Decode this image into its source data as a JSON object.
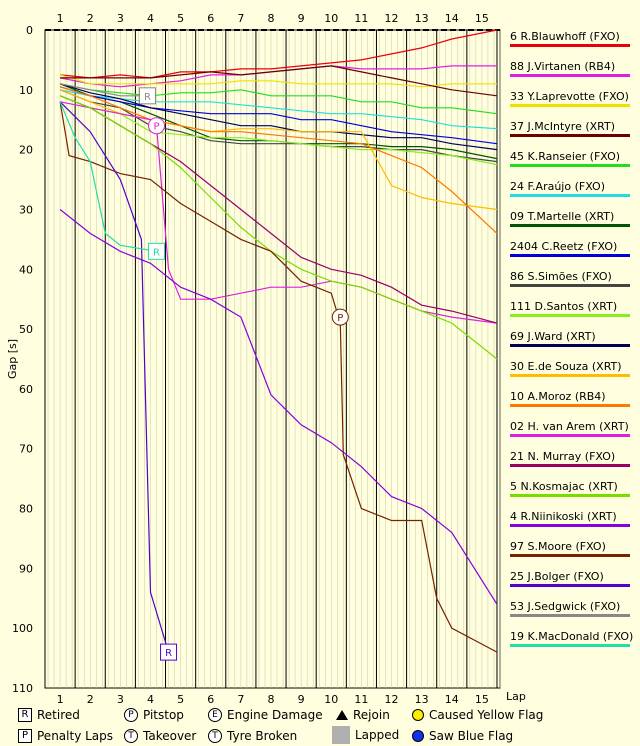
{
  "chart_data": {
    "type": "line",
    "ylabel": "Gap [s]",
    "xlabel": "Lap",
    "xticks": [
      "1",
      "2",
      "3",
      "4",
      "5",
      "6",
      "7",
      "8",
      "9",
      "10",
      "11",
      "12",
      "13",
      "14",
      "15"
    ],
    "yticks": [
      "0",
      "10",
      "20",
      "30",
      "40",
      "50",
      "60",
      "70",
      "80",
      "90",
      "100",
      "110"
    ],
    "ylim": [
      0,
      110
    ],
    "xlim": [
      0.5,
      15.6
    ],
    "series": [
      {
        "name": "6 R.Blauwhoff (FXO)",
        "color": "#e8000b",
        "x": [
          1,
          2,
          3,
          4,
          5,
          6,
          7,
          8,
          9,
          10,
          11,
          12,
          13,
          14,
          15.5
        ],
        "y": [
          7.5,
          8,
          7.5,
          8,
          7,
          7,
          6.5,
          6.5,
          6,
          5.5,
          5,
          4,
          3,
          1.5,
          0
        ]
      },
      {
        "name": "88 J.Virtanen (RB4)",
        "color": "#e020e0",
        "x": [
          1,
          2,
          3,
          4,
          5,
          6,
          7,
          8,
          9,
          10,
          11,
          12,
          13,
          14,
          15.5
        ],
        "y": [
          8,
          9,
          9.5,
          9,
          8.5,
          7.5,
          7.5,
          7,
          6.5,
          6,
          6.5,
          6.5,
          6.5,
          6,
          6
        ]
      },
      {
        "name": "33 Y.Laprevotte (FXO)",
        "color": "#f0e000",
        "x": [
          1,
          2,
          3,
          4,
          5,
          6,
          7,
          8,
          9,
          10,
          11,
          12,
          13,
          14,
          15.5
        ],
        "y": [
          7.5,
          9,
          9,
          9,
          9,
          9,
          8.5,
          8.5,
          9,
          9,
          9,
          9,
          9.5,
          9,
          9
        ]
      },
      {
        "name": "37 J.McIntyre (XRT)",
        "color": "#6b0000",
        "x": [
          1,
          2,
          3,
          4,
          5,
          6,
          7,
          8,
          9,
          10,
          11,
          12,
          13,
          14,
          15.5
        ],
        "y": [
          8,
          8,
          8,
          8,
          7.5,
          7,
          7.5,
          7,
          6.5,
          6,
          7,
          8,
          9,
          10,
          11
        ]
      },
      {
        "name": "45 K.Ranseier (FXO)",
        "color": "#22dd22",
        "x": [
          1,
          2,
          3,
          4,
          5,
          6,
          7,
          8,
          9,
          10,
          11,
          12,
          13,
          14,
          15.5
        ],
        "y": [
          9,
          10,
          10.5,
          11,
          10.5,
          10.5,
          10,
          11,
          11,
          11,
          12,
          12,
          13,
          13,
          14
        ]
      },
      {
        "name": "24 F.Araújo (FXO)",
        "color": "#22dddd",
        "x": [
          1,
          2,
          3,
          4,
          5,
          6,
          7,
          8,
          9,
          10,
          11,
          12,
          13,
          14,
          15.5
        ],
        "y": [
          10,
          11,
          11.5,
          12,
          12,
          12,
          12.5,
          13,
          13.5,
          14,
          14,
          14.5,
          15,
          16,
          16.5
        ]
      },
      {
        "name": "09 T.Martelle (XRT)",
        "color": "#005500",
        "x": [
          1,
          2,
          3,
          4,
          5,
          6,
          7,
          8,
          9,
          10,
          11,
          12,
          13,
          14,
          15.5
        ],
        "y": [
          9,
          11,
          12,
          14,
          16,
          18,
          18.5,
          18.5,
          19,
          19,
          19,
          19.5,
          19.5,
          20,
          21.5
        ]
      },
      {
        "name": "2404 C.Reetz (FXO)",
        "color": "#0000dd",
        "x": [
          1,
          2,
          3,
          4,
          5,
          6,
          7,
          8,
          9,
          10,
          11,
          12,
          13,
          14,
          15.5
        ],
        "y": [
          9.5,
          11,
          12,
          13,
          13.5,
          14,
          14,
          14,
          15,
          15,
          16,
          17,
          17.5,
          18,
          19
        ]
      },
      {
        "name": "86 S.Simões (FXO)",
        "color": "#444444",
        "x": [
          1,
          2,
          3,
          4,
          5,
          6,
          7,
          8,
          9,
          10,
          11,
          12,
          13,
          14,
          15.5
        ],
        "y": [
          10,
          12,
          13,
          16,
          17,
          18.5,
          19,
          19,
          19,
          19.5,
          19.5,
          20,
          20,
          21,
          22
        ]
      },
      {
        "name": "111 D.Santos (XRT)",
        "color": "#88ee22",
        "x": [
          1,
          2,
          3,
          4,
          5,
          6,
          7,
          8,
          9,
          10,
          11,
          12,
          13,
          14,
          15.5
        ],
        "y": [
          11,
          13,
          14,
          17,
          17.5,
          18,
          18,
          18.5,
          19,
          19.5,
          20,
          20,
          20.5,
          21,
          22.5
        ]
      },
      {
        "name": "69 J.Ward (XRT)",
        "color": "#00005a",
        "x": [
          1,
          2,
          3,
          4,
          5,
          6,
          7,
          8,
          9,
          10,
          11,
          12,
          13,
          14,
          15.5
        ],
        "y": [
          9,
          10.5,
          11.5,
          13,
          14,
          15,
          16,
          16,
          17,
          17,
          17.5,
          18,
          18,
          19,
          20
        ]
      },
      {
        "name": "30 E.de Souza (XRT)",
        "color": "#ffbb00",
        "x": [
          1,
          2,
          3,
          4,
          5,
          6,
          7,
          8,
          9,
          10,
          11,
          12,
          13,
          14,
          15.5
        ],
        "y": [
          10,
          12,
          14,
          15,
          16,
          17,
          16.5,
          16.5,
          17,
          17,
          17,
          26,
          28,
          29,
          30
        ]
      },
      {
        "name": "10 A.Moroz (RB4)",
        "color": "#ff7700",
        "x": [
          1,
          2,
          3,
          4,
          5,
          6,
          7,
          8,
          9,
          10,
          11,
          12,
          13,
          14,
          15.5
        ],
        "y": [
          9.5,
          11,
          13,
          15,
          16,
          17,
          17,
          17.5,
          18,
          18.5,
          19,
          21,
          23,
          27,
          34
        ]
      },
      {
        "name": "02 H. van Arem (XRT)",
        "color": "#dd22dd",
        "x": [
          1,
          2,
          3,
          4,
          4.2,
          4.6,
          5,
          6,
          7,
          8,
          9,
          10,
          11,
          12,
          13,
          14,
          15.5
        ],
        "y": [
          12,
          13,
          14,
          15,
          16,
          40,
          45,
          45,
          44,
          43,
          43,
          42,
          43,
          45,
          47,
          48,
          49
        ]
      },
      {
        "name": "21 N. Murray (FXO)",
        "color": "#990066",
        "x": [
          1,
          2,
          3,
          4,
          5,
          6,
          7,
          8,
          9,
          10,
          11,
          12,
          13,
          14,
          15.5
        ],
        "y": [
          11,
          13,
          16,
          19,
          22,
          26,
          30,
          34,
          38,
          40,
          41,
          43,
          46,
          47,
          49
        ]
      },
      {
        "name": "5 N.Kosmajac (XRT)",
        "color": "#77dd00",
        "x": [
          1,
          2,
          3,
          4,
          5,
          6,
          7,
          8,
          9,
          10,
          11,
          12,
          13,
          14,
          15.5
        ],
        "y": [
          11,
          13,
          16,
          19,
          23,
          28,
          33,
          37,
          40,
          42,
          43,
          45,
          47,
          49,
          55
        ]
      },
      {
        "name": "4 R.Niinikoski (XRT)",
        "color": "#8800dd",
        "x": [
          1,
          2,
          3,
          4,
          5,
          6,
          7,
          8,
          9,
          10,
          11,
          12,
          13,
          14,
          15.5
        ],
        "y": [
          30,
          34,
          37,
          39,
          43,
          45,
          48,
          61,
          66,
          69,
          73,
          78,
          80,
          84,
          96
        ]
      },
      {
        "name": "97 S.Moore (FXO)",
        "color": "#772200",
        "x": [
          1,
          1.3,
          2,
          3,
          4,
          5,
          6,
          7,
          8,
          9,
          10,
          10.3,
          10.4,
          11,
          12,
          13,
          13.5,
          14,
          15.5
        ],
        "y": [
          12,
          21,
          22,
          24,
          25,
          29,
          32,
          35,
          37,
          42,
          44,
          49,
          71,
          80,
          82,
          82,
          95,
          100,
          104
        ]
      },
      {
        "name": "25 J.Bolger (FXO)",
        "color": "#5500cc",
        "x": [
          1,
          2,
          3,
          3.7,
          4,
          4.6
        ],
        "y": [
          12,
          17,
          25,
          35,
          94,
          104
        ]
      },
      {
        "name": "53 J.Sedgwick (FXO)",
        "color": "#888888",
        "x": [
          1,
          2,
          3,
          3.9
        ],
        "y": [
          9,
          10,
          11,
          11
        ]
      },
      {
        "name": "19 K.MacDonald (FXO)",
        "color": "#22ddaa",
        "x": [
          1,
          1.5,
          2,
          2.5,
          3,
          4.2
        ],
        "y": [
          12,
          18,
          22,
          34,
          36,
          37
        ]
      }
    ],
    "annotations": [
      {
        "label": "R",
        "x": 3.9,
        "y": 11,
        "color": "#888888",
        "shape": "box"
      },
      {
        "label": "R",
        "x": 4.2,
        "y": 37,
        "color": "#22ddaa",
        "shape": "box"
      },
      {
        "label": "R",
        "x": 4.6,
        "y": 104,
        "color": "#5500cc",
        "shape": "box"
      },
      {
        "label": "P",
        "x": 4.2,
        "y": 16,
        "color": "#dd22dd",
        "shape": "circle"
      },
      {
        "label": "P",
        "x": 10.3,
        "y": 48,
        "color": "#772200",
        "shape": "circle"
      }
    ]
  },
  "key": {
    "retired": "Retired",
    "pitstop": "Pitstop",
    "engine_damage": "Engine Damage",
    "rejoin": "Rejoin",
    "yellow": "Caused Yellow Flag",
    "penalty": "Penalty Laps",
    "takeover": "Takeover",
    "tyre": "Tyre Broken",
    "lapped": "Lapped",
    "blue": "Saw Blue Flag",
    "sym_r": "R",
    "sym_p": "P",
    "sym_e": "E",
    "sym_t": "T"
  }
}
